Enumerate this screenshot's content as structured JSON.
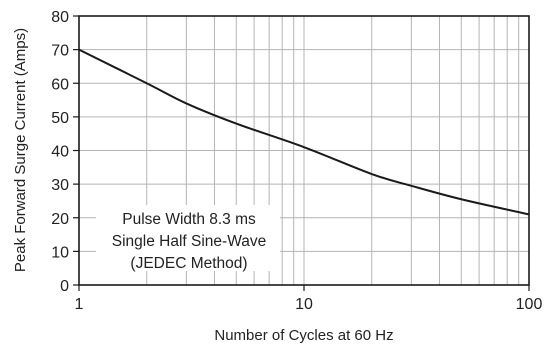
{
  "chart_data": {
    "type": "line",
    "title": "",
    "xlabel": "Number of Cycles at 60 Hz",
    "ylabel": "Peak Forward Surge Current (Amps)",
    "x_scale": "log",
    "xlim": [
      1,
      100
    ],
    "ylim": [
      0,
      80
    ],
    "x_ticks": [
      1,
      10,
      100
    ],
    "x_tick_labels": [
      "1",
      "10",
      "100"
    ],
    "y_ticks": [
      0,
      10,
      20,
      30,
      40,
      50,
      60,
      70,
      80
    ],
    "y_tick_labels": [
      "0",
      "10",
      "20",
      "30",
      "40",
      "50",
      "60",
      "70",
      "80"
    ],
    "grid": true,
    "annotation": [
      "Pulse Width 8.3 ms",
      "Single Half Sine-Wave",
      "(JEDEC Method)"
    ],
    "series": [
      {
        "x": [
          1,
          2,
          3,
          5,
          10,
          20,
          30,
          50,
          100
        ],
        "y": [
          70,
          60,
          54,
          48,
          41,
          33,
          29.5,
          25.5,
          21
        ]
      }
    ],
    "colors": {
      "line": "#1a1a1a",
      "grid": "#b4b4b4",
      "frame": "#1a1a1a"
    }
  }
}
